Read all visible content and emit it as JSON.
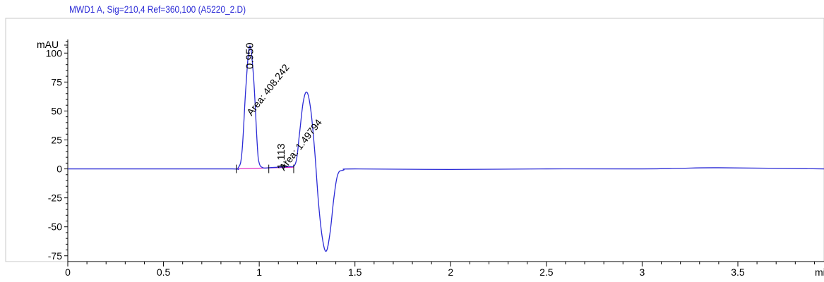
{
  "chart_data": {
    "type": "line",
    "title": "MWD1 A, Sig=210,4 Ref=360,100 (A5220_2.D)",
    "ylabel": "mAU",
    "xlabel": "mi",
    "xlim": [
      0,
      3.95
    ],
    "ylim": [
      -80,
      130
    ],
    "x_ticks": [
      0,
      0.5,
      1,
      1.5,
      2,
      2.5,
      3,
      3.5
    ],
    "x_tick_labels": [
      "0",
      "0.5",
      "1",
      "1.5",
      "2",
      "2.5",
      "3",
      "3.5"
    ],
    "y_ticks": [
      100,
      75,
      50,
      25,
      0,
      -25,
      -50,
      -75
    ],
    "y_tick_labels": [
      "100",
      "75",
      "50",
      "25",
      "0",
      "-25",
      "-50",
      "-75"
    ],
    "grid": false,
    "colors": {
      "signal": "#2b2bd6",
      "baseline": "#e020c0",
      "title": "#2b2bd6",
      "axis": "#000000"
    },
    "series": [
      {
        "x": [
          0,
          0.5,
          0.85,
          0.89,
          0.91,
          0.93,
          0.95,
          0.97,
          0.99,
          1.0,
          1.02,
          1.05,
          1.1,
          1.15,
          1.19,
          1.21,
          1.23,
          1.25,
          1.27,
          1.29,
          1.31,
          1.33,
          1.35,
          1.37,
          1.39,
          1.41,
          1.44,
          1.5,
          2.0,
          2.5,
          3.0,
          3.2,
          3.4,
          3.95
        ],
        "y": [
          0,
          0,
          0,
          1,
          15,
          70,
          106,
          80,
          20,
          5,
          1,
          1,
          1.5,
          2,
          5,
          30,
          58,
          66,
          50,
          15,
          -30,
          -60,
          -71,
          -55,
          -25,
          -5,
          -1,
          0,
          -0.5,
          0,
          0,
          0.5,
          1,
          0
        ]
      }
    ],
    "baseline": {
      "x": [
        0.88,
        1.18
      ],
      "y": [
        0,
        1.5
      ]
    },
    "peaks": [
      {
        "rt_label": "0.950",
        "rt": 0.95,
        "area_label": "Area: 408.242",
        "area_anchor_rt": 0.96
      },
      {
        "rt_label": "1.113",
        "rt": 1.113,
        "area_label": "Area: 1.49794",
        "area_anchor_rt": 1.13
      }
    ],
    "integration_marks": [
      0.88,
      1.05,
      1.18
    ]
  }
}
